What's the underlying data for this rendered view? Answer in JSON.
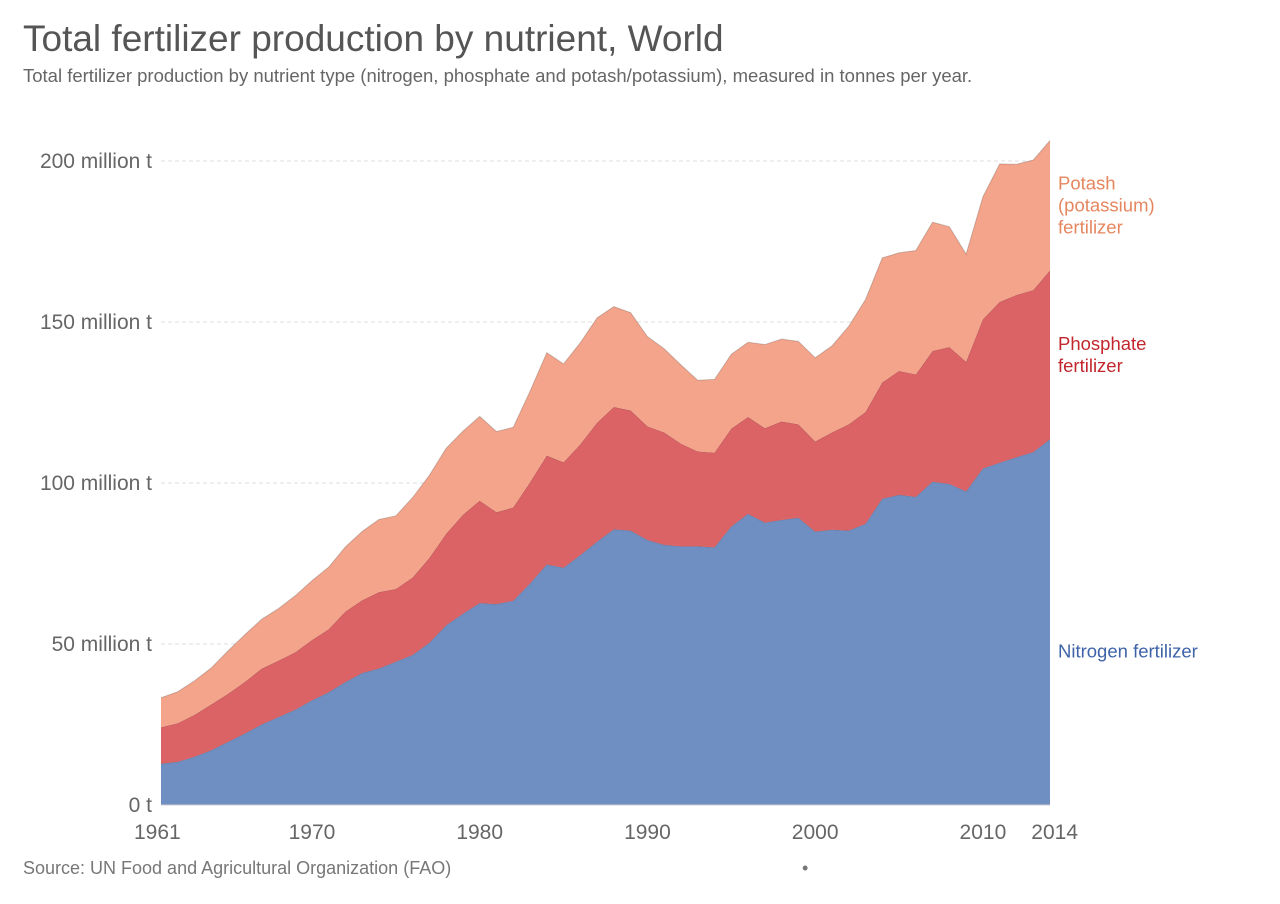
{
  "title": "Total fertilizer production by nutrient, World",
  "subtitle": "Total fertilizer production by nutrient type (nitrogen, phosphate and potash/potassium), measured in tonnes per year.",
  "source": "Source: UN Food and Agricultural Organization (FAO)",
  "footer_mark": "•",
  "chart_data": {
    "type": "area",
    "stacked": true,
    "title": "Total fertilizer production by nutrient, World",
    "xlabel": "",
    "ylabel": "",
    "xlim": [
      1961,
      2014
    ],
    "ylim": [
      0,
      200
    ],
    "y_unit": "million tonnes",
    "grid": "horizontal dashed",
    "legend": "inline labels at right end of areas",
    "x_ticks": [
      1961,
      1970,
      1980,
      1990,
      2000,
      2010,
      2014
    ],
    "y_ticks": [
      {
        "value": 0,
        "label": "0 t"
      },
      {
        "value": 50,
        "label": "50 million t"
      },
      {
        "value": 100,
        "label": "100 million t"
      },
      {
        "value": 150,
        "label": "150 million t"
      },
      {
        "value": 200,
        "label": "200 million t"
      }
    ],
    "x": [
      1961,
      1962,
      1963,
      1964,
      1965,
      1966,
      1967,
      1968,
      1969,
      1970,
      1971,
      1972,
      1973,
      1974,
      1975,
      1976,
      1977,
      1978,
      1979,
      1980,
      1981,
      1982,
      1983,
      1984,
      1985,
      1986,
      1987,
      1988,
      1989,
      1990,
      1991,
      1992,
      1993,
      1994,
      1995,
      1996,
      1997,
      1998,
      1999,
      2000,
      2001,
      2002,
      2003,
      2004,
      2005,
      2006,
      2007,
      2008,
      2009,
      2010,
      2011,
      2012,
      2013,
      2014
    ],
    "series": [
      {
        "name": "Nitrogen fertilizer",
        "color": "#6f8fc3",
        "label_color": "#3f63a8",
        "values": [
          12.8,
          13.4,
          15.0,
          17.0,
          19.6,
          22.2,
          25.0,
          27.3,
          29.6,
          32.5,
          35.0,
          38.2,
          41.0,
          42.4,
          44.5,
          46.6,
          50.4,
          55.8,
          59.4,
          62.7,
          62.4,
          63.4,
          68.8,
          74.7,
          73.7,
          77.6,
          81.8,
          85.6,
          85.2,
          82.3,
          80.8,
          80.3,
          80.3,
          80.0,
          86.5,
          90.4,
          87.7,
          88.5,
          89.2,
          84.9,
          85.5,
          85.2,
          87.3,
          95.1,
          96.3,
          95.7,
          100.4,
          99.7,
          97.4,
          104.5,
          106.3,
          108.0,
          109.6,
          113.6
        ]
      },
      {
        "name": "Phosphate fertilizer",
        "color": "#db6366",
        "label_color": "#c1272d",
        "values": [
          11.3,
          12.0,
          13.0,
          14.2,
          14.9,
          16.0,
          17.3,
          17.5,
          17.8,
          18.7,
          19.6,
          21.9,
          22.6,
          23.7,
          22.6,
          24.0,
          26.3,
          28.4,
          30.7,
          31.8,
          28.5,
          29.0,
          31.4,
          33.8,
          32.7,
          34.4,
          36.9,
          38.0,
          37.3,
          35.3,
          34.9,
          31.9,
          29.5,
          29.4,
          30.4,
          30.1,
          29.3,
          30.6,
          29.0,
          28.0,
          30.2,
          33.0,
          34.7,
          36.1,
          38.5,
          38.0,
          40.6,
          42.5,
          40.2,
          46.3,
          49.9,
          50.4,
          50.3,
          52.4
        ]
      },
      {
        "name": "Potash (potassium) fertilizer",
        "color": "#f3a48a",
        "label_color": "#e6865f",
        "values": [
          9.2,
          9.8,
          10.6,
          11.4,
          13.4,
          14.7,
          15.4,
          16.2,
          17.6,
          18.5,
          19.3,
          20.1,
          21.4,
          22.6,
          22.7,
          24.9,
          25.7,
          26.6,
          26.0,
          26.2,
          25.1,
          24.9,
          28.3,
          32.0,
          30.6,
          31.6,
          32.6,
          31.2,
          30.4,
          27.9,
          26.0,
          24.5,
          22.1,
          22.8,
          23.1,
          23.2,
          26.0,
          25.6,
          25.8,
          26.0,
          26.9,
          30.5,
          35.0,
          38.7,
          36.7,
          38.5,
          40.0,
          37.4,
          33.5,
          38.1,
          42.9,
          40.6,
          40.4,
          40.4
        ]
      }
    ],
    "series_labels": [
      {
        "series": "Potash (potassium) fertilizer",
        "lines": [
          "Potash",
          "(potassium)",
          "fertilizer"
        ]
      },
      {
        "series": "Phosphate fertilizer",
        "lines": [
          "Phosphate",
          "fertilizer"
        ]
      },
      {
        "series": "Nitrogen fertilizer",
        "lines": [
          "Nitrogen fertilizer"
        ]
      }
    ]
  }
}
